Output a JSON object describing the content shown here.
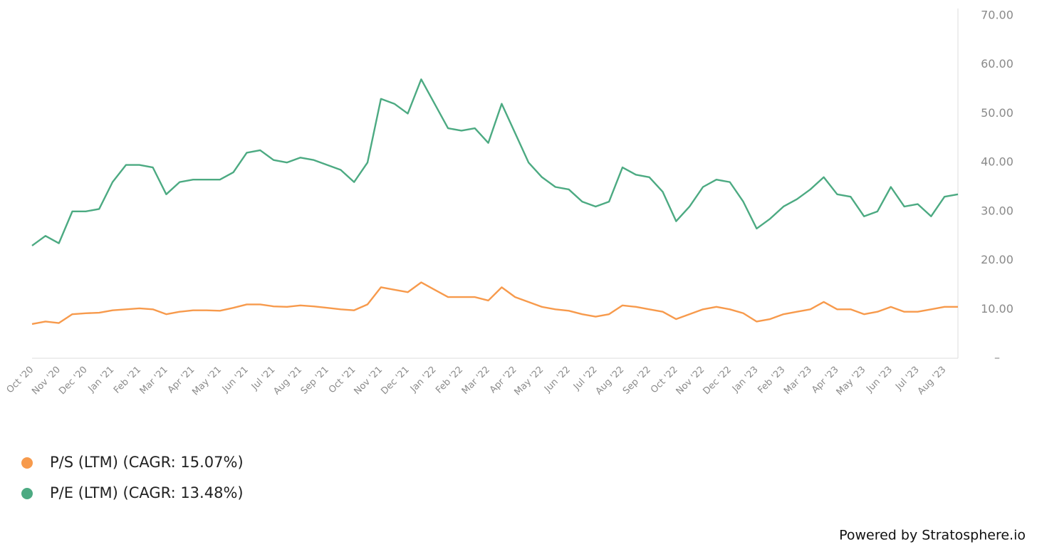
{
  "chart_data": {
    "type": "line",
    "categories": [
      "Oct '20",
      null,
      "Nov '20",
      null,
      "Dec '20",
      null,
      "Jan '21",
      null,
      "Feb '21",
      null,
      "Mar '21",
      null,
      "Apr '21",
      null,
      "May '21",
      null,
      "Jun '21",
      null,
      "Jul '21",
      null,
      "Aug '21",
      null,
      "Sep '21",
      null,
      "Oct '21",
      null,
      "Nov '21",
      null,
      "Dec '21",
      null,
      "Jan '22",
      null,
      "Feb '22",
      null,
      "Mar '22",
      null,
      "Apr '22",
      null,
      "May '22",
      null,
      "Jun '22",
      null,
      "Jul '22",
      null,
      "Aug '22",
      null,
      "Sep '22",
      null,
      "Oct '22",
      null,
      "Nov '22",
      null,
      "Dec '22",
      null,
      "Jan '23",
      null,
      "Feb '23",
      null,
      "Mar '23",
      null,
      "Apr '23",
      null,
      "May '23",
      null,
      "Jun '23",
      null,
      "Jul '23",
      null,
      "Aug '23",
      null
    ],
    "series": [
      {
        "name": "P/S (LTM) (CAGR: 15.07%)",
        "color": "#f79a4c",
        "values": [
          7,
          7.5,
          7.2,
          9,
          9.2,
          9.3,
          9.8,
          10,
          10.2,
          10,
          9,
          9.5,
          9.8,
          9.8,
          9.7,
          10.3,
          11,
          11,
          10.6,
          10.5,
          10.8,
          10.6,
          10.3,
          10,
          9.8,
          11,
          14.5,
          14,
          13.5,
          15.5,
          14,
          12.5,
          12.5,
          12.5,
          11.8,
          14.5,
          12.5,
          11.5,
          10.5,
          10,
          9.7,
          9,
          8.5,
          9,
          10.8,
          10.5,
          10,
          9.5,
          8,
          9,
          10,
          10.5,
          10,
          9.2,
          7.5,
          8,
          9,
          9.5,
          10,
          11.5,
          10,
          10,
          9,
          9.5,
          10.5,
          9.5,
          9.5,
          10,
          10.5,
          10.5
        ]
      },
      {
        "name": "P/E (LTM) (CAGR: 13.48%)",
        "color": "#4caa82",
        "values": [
          23,
          25,
          23.5,
          30,
          30,
          30.5,
          36,
          39.5,
          39.5,
          39,
          33.5,
          36,
          36.5,
          36.5,
          36.5,
          38,
          42,
          42.5,
          40.5,
          40,
          41,
          40.5,
          39.5,
          38.5,
          36,
          40,
          53,
          52,
          50,
          57,
          52,
          47,
          46.5,
          47,
          44,
          52,
          46,
          40,
          37,
          35,
          34.5,
          32,
          31,
          32,
          39,
          37.5,
          37,
          34,
          28,
          31,
          35,
          36.5,
          36,
          32,
          26.5,
          28.5,
          31,
          32.5,
          34.5,
          37,
          33.5,
          33,
          29,
          30,
          35,
          31,
          31.5,
          29,
          33,
          33.5
        ]
      }
    ],
    "ylim": [
      0,
      70
    ],
    "yticks": [
      {
        "value": 0,
        "label": "–"
      },
      {
        "value": 10,
        "label": "10.00"
      },
      {
        "value": 20,
        "label": "20.00"
      },
      {
        "value": 30,
        "label": "30.00"
      },
      {
        "value": 40,
        "label": "40.00"
      },
      {
        "value": 50,
        "label": "50.00"
      },
      {
        "value": 60,
        "label": "60.00"
      },
      {
        "value": 70,
        "label": "70.00"
      }
    ],
    "grid": false,
    "legend": "bottom-left",
    "footer": "Powered by Stratosphere.io"
  }
}
